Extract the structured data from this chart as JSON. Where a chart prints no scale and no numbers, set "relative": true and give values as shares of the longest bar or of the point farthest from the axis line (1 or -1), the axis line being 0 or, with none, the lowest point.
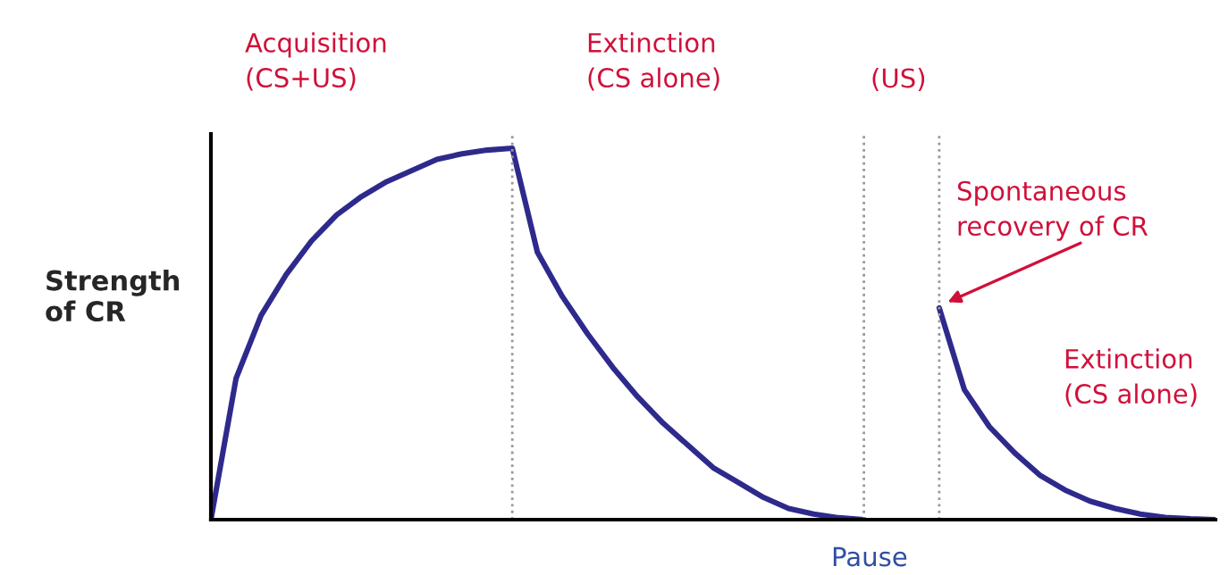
{
  "chart_data": {
    "type": "line",
    "relative": true,
    "grid": "x",
    "marker": "none",
    "line_style": "solid",
    "ylabel": "Strength\nof CR",
    "categories": [
      null,
      null,
      null,
      null,
      null,
      null,
      null,
      null,
      null,
      null,
      null,
      null,
      null,
      null,
      null,
      null,
      null,
      null,
      null,
      null,
      null,
      null,
      null,
      null,
      null,
      null,
      null,
      null,
      null,
      null,
      null,
      null,
      null,
      null,
      null,
      null,
      null,
      null,
      null,
      null,
      null
    ],
    "series": [
      {
        "color": "#2e2a8c",
        "values": [
          0,
          0.38,
          0.55,
          0.66,
          0.75,
          0.82,
          0.87,
          0.91,
          0.94,
          0.97,
          0.985,
          0.995,
          1.0,
          0.72,
          0.6,
          0.5,
          0.41,
          0.33,
          0.26,
          0.2,
          0.14,
          0.1,
          0.06,
          0.03,
          0.015,
          0.005,
          0,
          null,
          null,
          null,
          null,
          null,
          null,
          null,
          null,
          null,
          null,
          null,
          null,
          null,
          null
        ]
      },
      {
        "color": "#2e2a8c",
        "values": [
          null,
          null,
          null,
          null,
          null,
          null,
          null,
          null,
          null,
          null,
          null,
          null,
          null,
          null,
          null,
          null,
          null,
          null,
          null,
          null,
          null,
          null,
          null,
          null,
          null,
          null,
          null,
          null,
          null,
          0.57,
          0.35,
          0.25,
          0.18,
          0.12,
          0.08,
          0.05,
          0.03,
          0.015,
          0.006,
          0.002,
          0
        ]
      }
    ],
    "annotations": [
      "Acquisition\n(CS+US)",
      "Extinction\n(CS alone)",
      "(US)",
      "Spontaneous\nrecovery of CR",
      "Extinction\n(CS alone)",
      "Pause"
    ]
  }
}
